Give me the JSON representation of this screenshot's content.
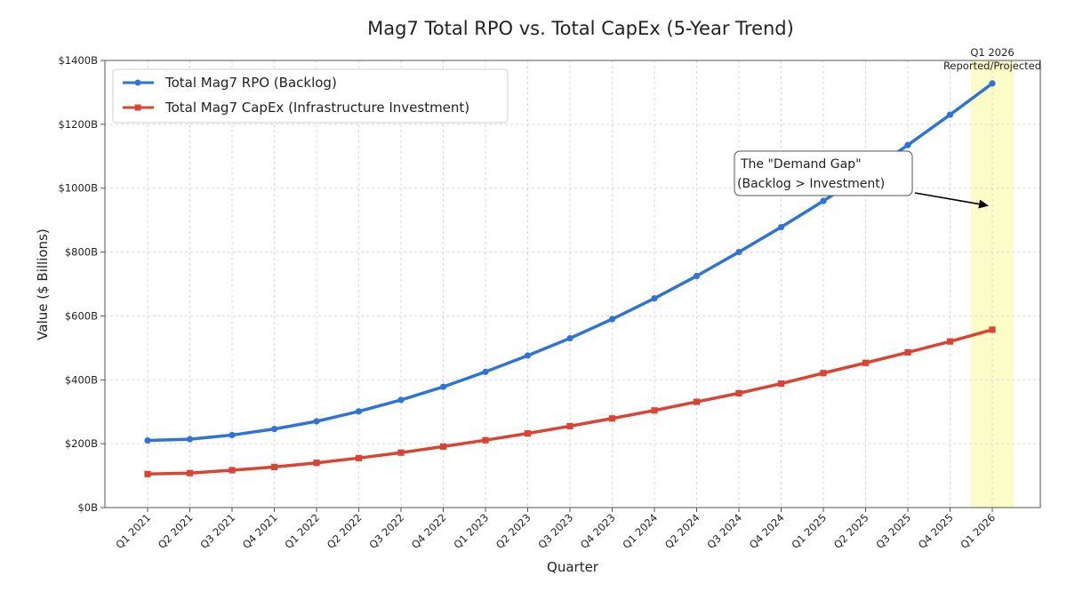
{
  "chart_data": {
    "type": "line",
    "title": "Mag7 Total RPO vs. Total CapEx (5-Year Trend)",
    "xlabel": "Quarter",
    "ylabel": "Value ($ Billions)",
    "ylim": [
      0,
      1400
    ],
    "yticks": [
      {
        "value": 0,
        "label": "$0B"
      },
      {
        "value": 200,
        "label": "$200B"
      },
      {
        "value": 400,
        "label": "$400B"
      },
      {
        "value": 600,
        "label": "$600B"
      },
      {
        "value": 800,
        "label": "$800B"
      },
      {
        "value": 1000,
        "label": "$1000B"
      },
      {
        "value": 1200,
        "label": "$1200B"
      },
      {
        "value": 1400,
        "label": "$1400B"
      }
    ],
    "categories": [
      "Q1 2021",
      "Q2 2021",
      "Q3 2021",
      "Q4 2021",
      "Q1 2022",
      "Q2 2022",
      "Q3 2022",
      "Q4 2022",
      "Q1 2023",
      "Q2 2023",
      "Q3 2023",
      "Q4 2023",
      "Q1 2024",
      "Q2 2024",
      "Q3 2024",
      "Q4 2024",
      "Q1 2025",
      "Q2 2025",
      "Q3 2025",
      "Q4 2025",
      "Q1 2026"
    ],
    "series": [
      {
        "name": "Total Mag7 RPO (Backlog)",
        "color": "#2f73d6",
        "values": [
          210,
          214,
          227,
          246,
          270,
          301,
          337,
          378,
          425,
          476,
          530,
          590,
          655,
          725,
          800,
          878,
          960,
          1045,
          1135,
          1230,
          1328
        ]
      },
      {
        "name": "Total Mag7 CapEx (Infrastructure Investment)",
        "color": "#d94434",
        "values": [
          105,
          108,
          117,
          127,
          140,
          155,
          172,
          191,
          211,
          232,
          255,
          279,
          304,
          331,
          358,
          388,
          421,
          453,
          486,
          520,
          557
        ]
      }
    ],
    "highlight": {
      "category": "Q1 2026",
      "label_line1": "Q1 2026",
      "label_line2": "Reported/Projected",
      "color": "#fcfcc8"
    },
    "annotation": {
      "line1": "The \"Demand Gap\"",
      "line2": "(Backlog > Investment)",
      "target": {
        "category": "Q1 2026",
        "value": 945
      }
    },
    "legend_position": "top-left",
    "grid": true
  }
}
